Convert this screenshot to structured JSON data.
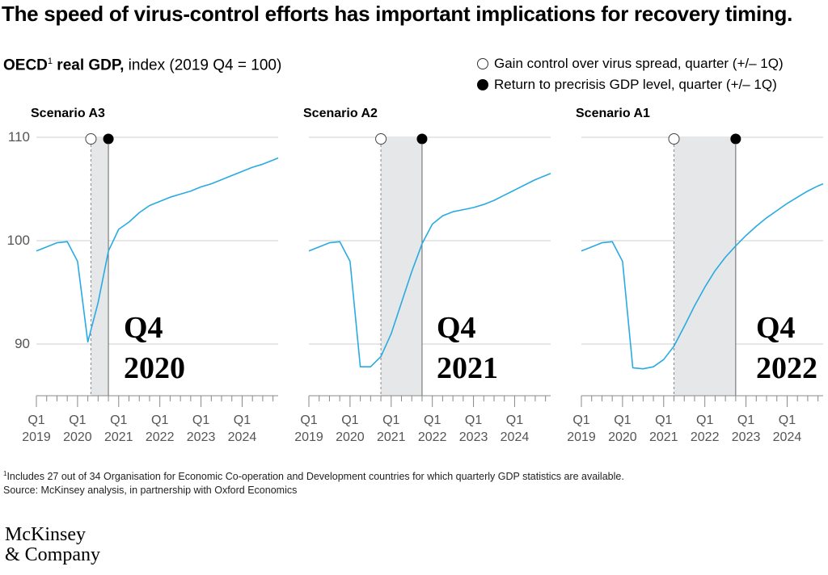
{
  "title": "The speed of virus-control efforts has important implications for recovery timing.",
  "subtitle": {
    "bold": "OECD",
    "sup": "1",
    "bold_suffix": " real GDP,",
    "rest": " index (2019 Q4 = 100)"
  },
  "legend": [
    {
      "marker": "open-circle",
      "label": "Gain control over virus spread, quarter (+/– 1Q)"
    },
    {
      "marker": "filled-circle",
      "label": "Return to precrisis GDP level, quarter (+/– 1Q)"
    }
  ],
  "colors": {
    "line": "#29abe2",
    "shade": "#e6e7e8",
    "grid": "#cfcfcf"
  },
  "chart_data": [
    {
      "type": "line",
      "title": "Scenario A3",
      "ylim": [
        85,
        110
      ],
      "yticks": [
        90,
        100,
        110
      ],
      "x_range": [
        0,
        23.5
      ],
      "xtick_labels": [
        {
          "q": "Q1",
          "y": "2019"
        },
        {
          "q": "Q1",
          "y": "2020"
        },
        {
          "q": "Q1",
          "y": "2021"
        },
        {
          "q": "Q1",
          "y": "2022"
        },
        {
          "q": "Q1",
          "y": "2023"
        },
        {
          "q": "Q1",
          "y": "2024"
        }
      ],
      "virus_control_quarter": 5.3,
      "precrisis_return_quarter": 7.0,
      "annotation": [
        "Q4",
        "2020"
      ],
      "series": [
        {
          "name": "OECD real GDP",
          "x": [
            0,
            1,
            2,
            3,
            4,
            5,
            6,
            7,
            8,
            9,
            10,
            11,
            12,
            13,
            14,
            15,
            16,
            17,
            18,
            19,
            20,
            21,
            22,
            23,
            23.5
          ],
          "values": [
            99,
            99.4,
            99.8,
            99.9,
            98,
            90.2,
            94,
            99,
            101.1,
            101.8,
            102.7,
            103.4,
            103.8,
            104.2,
            104.5,
            104.8,
            105.2,
            105.5,
            105.9,
            106.3,
            106.7,
            107.1,
            107.4,
            107.8,
            108
          ]
        }
      ]
    },
    {
      "type": "line",
      "title": "Scenario A2",
      "ylim": [
        85,
        110
      ],
      "yticks": [
        90,
        100,
        110
      ],
      "x_range": [
        0,
        23.5
      ],
      "xtick_labels": [
        {
          "q": "Q1",
          "y": "2019"
        },
        {
          "q": "Q1",
          "y": "2020"
        },
        {
          "q": "Q1",
          "y": "2021"
        },
        {
          "q": "Q1",
          "y": "2022"
        },
        {
          "q": "Q1",
          "y": "2023"
        },
        {
          "q": "Q1",
          "y": "2024"
        }
      ],
      "virus_control_quarter": 7.0,
      "precrisis_return_quarter": 11.0,
      "annotation": [
        "Q4",
        "2021"
      ],
      "series": [
        {
          "name": "OECD real GDP",
          "x": [
            0,
            1,
            2,
            3,
            4,
            5,
            6,
            7,
            8,
            9,
            10,
            11,
            12,
            13,
            14,
            15,
            16,
            17,
            18,
            19,
            20,
            21,
            22,
            23,
            23.5
          ],
          "values": [
            99,
            99.4,
            99.8,
            99.9,
            98,
            87.8,
            87.8,
            88.8,
            91,
            94,
            97,
            99.7,
            101.6,
            102.4,
            102.8,
            103,
            103.2,
            103.5,
            103.9,
            104.4,
            104.9,
            105.4,
            105.9,
            106.3,
            106.5
          ]
        }
      ]
    },
    {
      "type": "line",
      "title": "Scenario A1",
      "ylim": [
        85,
        110
      ],
      "yticks": [
        90,
        100,
        110
      ],
      "x_range": [
        0,
        23.5
      ],
      "xtick_labels": [
        {
          "q": "Q1",
          "y": "2019"
        },
        {
          "q": "Q1",
          "y": "2020"
        },
        {
          "q": "Q1",
          "y": "2021"
        },
        {
          "q": "Q1",
          "y": "2022"
        },
        {
          "q": "Q1",
          "y": "2023"
        },
        {
          "q": "Q1",
          "y": "2024"
        }
      ],
      "virus_control_quarter": 9.0,
      "precrisis_return_quarter": 15.0,
      "annotation": [
        "Q4",
        "2022"
      ],
      "series": [
        {
          "name": "OECD real GDP",
          "x": [
            0,
            1,
            2,
            3,
            4,
            5,
            6,
            7,
            8,
            9,
            10,
            11,
            12,
            13,
            14,
            15,
            16,
            17,
            18,
            19,
            20,
            21,
            22,
            23,
            23.5
          ],
          "values": [
            99,
            99.4,
            99.8,
            99.9,
            98,
            87.7,
            87.6,
            87.8,
            88.5,
            89.8,
            91.7,
            93.7,
            95.5,
            97.1,
            98.4,
            99.5,
            100.5,
            101.4,
            102.2,
            102.9,
            103.6,
            104.2,
            104.8,
            105.3,
            105.5
          ]
        }
      ]
    }
  ],
  "footnote": {
    "sup": "1",
    "text": "Includes 27 out of 34 Organisation for Economic Co-operation and Development countries for which quarterly GDP statistics are available.",
    "source": "Source: McKinsey analysis, in partnership with Oxford Economics"
  },
  "logo": {
    "line1": "McKinsey",
    "line2": "& Company"
  }
}
